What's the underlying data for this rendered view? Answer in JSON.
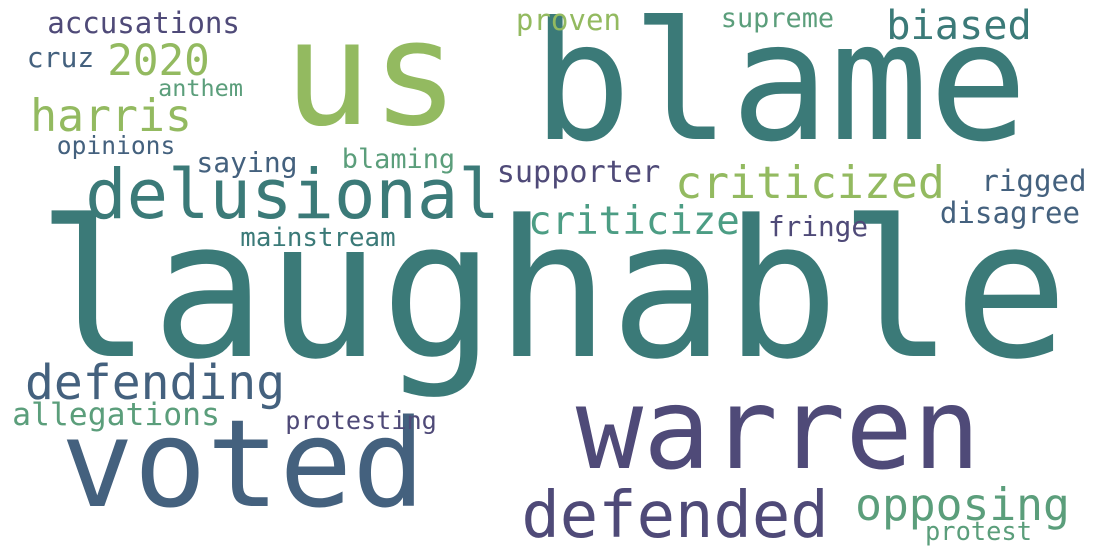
{
  "word_cloud": {
    "words": [
      {
        "text": "laughable",
        "color": "#3b7a78"
      },
      {
        "text": "warren",
        "color": "#4f4a78"
      },
      {
        "text": "us",
        "color": "#93ba60"
      },
      {
        "text": "blame",
        "color": "#3b7a78"
      },
      {
        "text": "voted",
        "color": "#44617e"
      },
      {
        "text": "delusional",
        "color": "#3b7a78"
      },
      {
        "text": "defended",
        "color": "#4f4a78"
      },
      {
        "text": "defending",
        "color": "#44617e"
      },
      {
        "text": "criticized",
        "color": "#93ba60"
      },
      {
        "text": "criticize",
        "color": "#4c9d84"
      },
      {
        "text": "opposing",
        "color": "#5b9e7b"
      },
      {
        "text": "harris",
        "color": "#93ba60"
      },
      {
        "text": "biased",
        "color": "#3b7a78"
      },
      {
        "text": "2020",
        "color": "#93ba60"
      },
      {
        "text": "allegations",
        "color": "#5b9e7b"
      },
      {
        "text": "accusations",
        "color": "#4f4a78"
      },
      {
        "text": "supporter",
        "color": "#4f4a78"
      },
      {
        "text": "proven",
        "color": "#93ba60"
      },
      {
        "text": "supreme",
        "color": "#5b9e7b"
      },
      {
        "text": "rigged",
        "color": "#44617e"
      },
      {
        "text": "disagree",
        "color": "#44617e"
      },
      {
        "text": "mainstream",
        "color": "#3b7a78"
      },
      {
        "text": "blaming",
        "color": "#5b9e7b"
      },
      {
        "text": "saying",
        "color": "#44617e"
      },
      {
        "text": "opinions",
        "color": "#44617e"
      },
      {
        "text": "cruz",
        "color": "#44617e"
      },
      {
        "text": "anthem",
        "color": "#5b9e7b"
      },
      {
        "text": "fringe",
        "color": "#4f4a78"
      },
      {
        "text": "protesting",
        "color": "#4f4a78"
      },
      {
        "text": "protest",
        "color": "#5b9e7b"
      }
    ]
  }
}
